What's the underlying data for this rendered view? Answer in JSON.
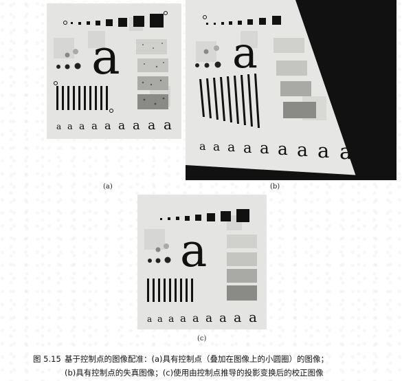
{
  "panels": [
    {
      "id": "a",
      "label": "(a)",
      "big_letter": "a",
      "row_letters": [
        "a",
        "a",
        "a",
        "a",
        "a",
        "a",
        "a",
        "a",
        "a"
      ]
    },
    {
      "id": "b",
      "label": "(b)",
      "big_letter": "a",
      "row_letters": [
        "a",
        "a",
        "a",
        "a",
        "a",
        "a",
        "a",
        "a",
        "a"
      ]
    },
    {
      "id": "c",
      "label": "(c)",
      "big_letter": "a",
      "row_letters": [
        "a",
        "a",
        "a",
        "a",
        "a",
        "a",
        "a",
        "a",
        "a"
      ]
    }
  ],
  "caption": {
    "figure_number": "图 5.15",
    "line1": "基于控制点的图像配准：(a)具有控制点（叠加在图像上的小圆圈）的图像；",
    "line2": "(b)具有控制点的失真图像；(c)使用由控制点推导的投影变换后的校正图像"
  }
}
